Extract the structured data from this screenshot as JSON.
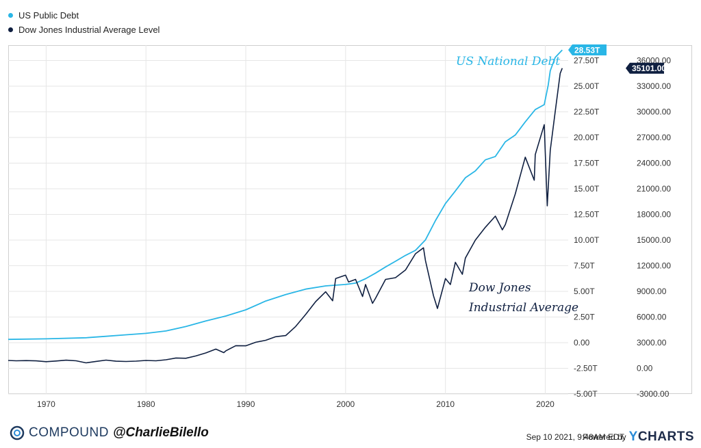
{
  "legend": [
    {
      "name": "US Public Debt",
      "color": "#29b6e6"
    },
    {
      "name": "Dow Jones Industrial Average Level",
      "color": "#0f1f40"
    }
  ],
  "chart_data": {
    "type": "line",
    "x_ticks": [
      "1970",
      "1980",
      "1990",
      "2000",
      "2010",
      "2020"
    ],
    "x_range": [
      1966.2,
      2022.3
    ],
    "y_left": {
      "range": [
        -5,
        29
      ],
      "ticks": [
        -5,
        -2.5,
        0,
        2.5,
        5,
        7.5,
        10,
        12.5,
        15,
        17.5,
        20,
        22.5,
        25,
        27.5
      ],
      "tick_labels": [
        "-5.00T",
        "-2.50T",
        "0.00",
        "2.50T",
        "5.00T",
        "7.50T",
        "10.00T",
        "12.50T",
        "15.00T",
        "17.50T",
        "20.00T",
        "22.50T",
        "25.00T",
        "27.50T"
      ]
    },
    "y_right": {
      "range": [
        -3000,
        37800
      ],
      "ticks": [
        -3000,
        0,
        3000,
        6000,
        9000,
        12000,
        15000,
        18000,
        21000,
        24000,
        27000,
        30000,
        33000,
        36000
      ],
      "tick_labels": [
        "-3000.00",
        "0.00",
        "3000.00",
        "6000.00",
        "9000.00",
        "12000.00",
        "15000.00",
        "18000.00",
        "21000.00",
        "24000.00",
        "27000.00",
        "30000.00",
        "33000.00",
        "36000.00"
      ]
    },
    "grid": true,
    "legend_position": "top-left",
    "series": [
      {
        "name": "US Public Debt",
        "axis": "left",
        "color": "#29b6e6",
        "last_value_label": "28.53T",
        "points": [
          [
            1966.2,
            0.32
          ],
          [
            1970,
            0.37
          ],
          [
            1974,
            0.48
          ],
          [
            1976,
            0.62
          ],
          [
            1978,
            0.77
          ],
          [
            1980,
            0.91
          ],
          [
            1982,
            1.14
          ],
          [
            1984,
            1.57
          ],
          [
            1986,
            2.12
          ],
          [
            1988,
            2.6
          ],
          [
            1990,
            3.2
          ],
          [
            1992,
            4.06
          ],
          [
            1994,
            4.69
          ],
          [
            1996,
            5.22
          ],
          [
            1998,
            5.53
          ],
          [
            2000,
            5.67
          ],
          [
            2001,
            5.81
          ],
          [
            2002,
            6.23
          ],
          [
            2003,
            6.78
          ],
          [
            2004,
            7.38
          ],
          [
            2005,
            7.93
          ],
          [
            2006,
            8.51
          ],
          [
            2007,
            9.0
          ],
          [
            2008,
            10.02
          ],
          [
            2009,
            11.9
          ],
          [
            2010,
            13.56
          ],
          [
            2011,
            14.79
          ],
          [
            2012,
            16.07
          ],
          [
            2013,
            16.74
          ],
          [
            2014,
            17.82
          ],
          [
            2015,
            18.15
          ],
          [
            2016,
            19.57
          ],
          [
            2017,
            20.24
          ],
          [
            2018,
            21.52
          ],
          [
            2019,
            22.72
          ],
          [
            2019.9,
            23.2
          ],
          [
            2020.3,
            25.1
          ],
          [
            2020.5,
            26.5
          ],
          [
            2021,
            27.8
          ],
          [
            2021.7,
            28.53
          ]
        ]
      },
      {
        "name": "Dow Jones Industrial Average Level",
        "axis": "right",
        "color": "#0f1f40",
        "last_value_label": "35101.00",
        "points": [
          [
            1966.2,
            920
          ],
          [
            1967,
            880
          ],
          [
            1968,
            905
          ],
          [
            1969,
            870
          ],
          [
            1970,
            780
          ],
          [
            1971,
            860
          ],
          [
            1972,
            950
          ],
          [
            1973,
            880
          ],
          [
            1974,
            640
          ],
          [
            1975,
            810
          ],
          [
            1976,
            960
          ],
          [
            1977,
            830
          ],
          [
            1978,
            800
          ],
          [
            1979,
            840
          ],
          [
            1980,
            920
          ],
          [
            1981,
            880
          ],
          [
            1982,
            1000
          ],
          [
            1983,
            1210
          ],
          [
            1984,
            1180
          ],
          [
            1985,
            1450
          ],
          [
            1986,
            1800
          ],
          [
            1987,
            2250
          ],
          [
            1987.8,
            1830
          ],
          [
            1988,
            2050
          ],
          [
            1989,
            2650
          ],
          [
            1990,
            2630
          ],
          [
            1991,
            3050
          ],
          [
            1992,
            3280
          ],
          [
            1993,
            3700
          ],
          [
            1994,
            3830
          ],
          [
            1995,
            4900
          ],
          [
            1996,
            6300
          ],
          [
            1997,
            7800
          ],
          [
            1998,
            8950
          ],
          [
            1998.7,
            7900
          ],
          [
            1999,
            10500
          ],
          [
            2000,
            10900
          ],
          [
            2000.3,
            10100
          ],
          [
            2001,
            10400
          ],
          [
            2001.7,
            8400
          ],
          [
            2002,
            9800
          ],
          [
            2002.7,
            7600
          ],
          [
            2003,
            8200
          ],
          [
            2004,
            10400
          ],
          [
            2005,
            10600
          ],
          [
            2006,
            11500
          ],
          [
            2007,
            13400
          ],
          [
            2007.8,
            14100
          ],
          [
            2008,
            12600
          ],
          [
            2008.8,
            8500
          ],
          [
            2009.2,
            7000
          ],
          [
            2010,
            10500
          ],
          [
            2010.5,
            9800
          ],
          [
            2011,
            12400
          ],
          [
            2011.7,
            11000
          ],
          [
            2012,
            12900
          ],
          [
            2013,
            15000
          ],
          [
            2014,
            16500
          ],
          [
            2015,
            17800
          ],
          [
            2015.7,
            16200
          ],
          [
            2016,
            16800
          ],
          [
            2017,
            20400
          ],
          [
            2018,
            24700
          ],
          [
            2018.9,
            22000
          ],
          [
            2019,
            25000
          ],
          [
            2019.9,
            28500
          ],
          [
            2020.2,
            19000
          ],
          [
            2020.5,
            25500
          ],
          [
            2021,
            30000
          ],
          [
            2021.5,
            34500
          ],
          [
            2021.7,
            35101
          ]
        ]
      }
    ],
    "annotations": [
      {
        "text": "US National Debt",
        "color": "#29b6e6"
      },
      {
        "text": "Dow Jones",
        "color": "#0f1f40"
      },
      {
        "text": "Industrial Average",
        "color": "#0f1f40"
      }
    ]
  },
  "footer": {
    "brand": "COMPOUND",
    "handle": "@CharlieBilello",
    "timestamp": "Sep 10 2021, 9:48AM EDT.",
    "powered_by": "Powered by",
    "provider_y": "Y",
    "provider_rest": "CHARTS"
  }
}
